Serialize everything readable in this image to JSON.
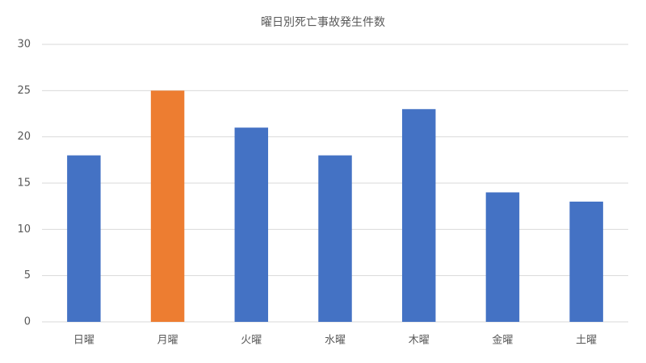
{
  "chart_data": {
    "type": "bar",
    "title": "曜日別死亡事故発生件数",
    "categories": [
      "日曜",
      "月曜",
      "火曜",
      "水曜",
      "木曜",
      "金曜",
      "土曜"
    ],
    "values": [
      18,
      25,
      21,
      18,
      23,
      14,
      13
    ],
    "colors": [
      "#4472c4",
      "#ed7d31",
      "#4472c4",
      "#4472c4",
      "#4472c4",
      "#4472c4",
      "#4472c4"
    ],
    "ylim": [
      0,
      30
    ],
    "yticks": [
      0,
      5,
      10,
      15,
      20,
      25,
      30
    ],
    "grid": true
  }
}
